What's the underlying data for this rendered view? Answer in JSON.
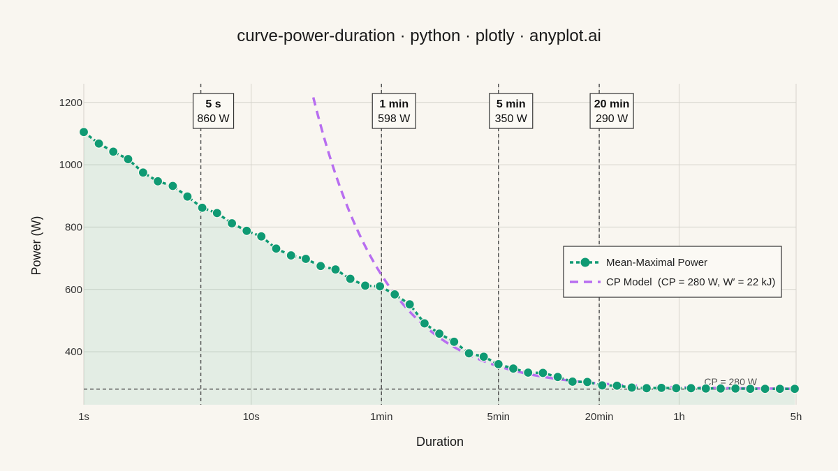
{
  "chart_data": {
    "type": "line",
    "title": "curve-power-duration · python · plotly · anyplot.ai",
    "xlabel": "Duration",
    "ylabel": "Power (W)",
    "x_scale": "log",
    "x_unit": "seconds",
    "xlim": [
      1,
      18000
    ],
    "ylim": [
      230,
      1260
    ],
    "x_ticks": [
      {
        "value": 1,
        "label": "1s"
      },
      {
        "value": 10,
        "label": "10s"
      },
      {
        "value": 60,
        "label": "1min"
      },
      {
        "value": 300,
        "label": "5min"
      },
      {
        "value": 1200,
        "label": "20min"
      },
      {
        "value": 3600,
        "label": "1h"
      },
      {
        "value": 18000,
        "label": "5h"
      }
    ],
    "y_ticks": [
      {
        "value": 400,
        "label": "400"
      },
      {
        "value": 600,
        "label": "600"
      },
      {
        "value": 800,
        "label": "800"
      },
      {
        "value": 1000,
        "label": "1000"
      },
      {
        "value": 1200,
        "label": "1200"
      }
    ],
    "grid": true,
    "legend_position": "right",
    "series": [
      {
        "name": "Mean-Maximal Power",
        "style": "line+markers",
        "fill": "tozero",
        "color": "#0F9A73",
        "x": [
          1,
          1.23,
          1.5,
          1.84,
          2.26,
          2.77,
          3.4,
          4.16,
          5.1,
          6.25,
          7.67,
          9.4,
          11.5,
          14.1,
          17.3,
          21.2,
          26,
          31.9,
          39.1,
          48,
          58.8,
          72,
          88.5,
          108.5,
          133,
          163,
          200,
          245,
          300,
          368,
          451,
          553,
          678,
          831,
          1019,
          1250,
          1532,
          1878,
          2303,
          2823,
          3461,
          4243,
          5202,
          6377,
          7818,
          9585,
          11751,
          14406,
          17661
        ],
        "y": [
          1105,
          1068,
          1042,
          1018,
          975,
          947,
          932,
          898,
          862,
          845,
          812,
          788,
          770,
          731,
          709,
          698,
          675,
          664,
          634,
          612,
          610,
          584,
          552,
          491,
          458,
          432,
          395,
          384,
          360,
          346,
          333,
          332,
          319,
          304,
          303,
          292,
          291,
          285,
          283,
          284,
          283,
          283,
          282,
          282,
          282,
          281,
          281,
          281,
          281
        ]
      },
      {
        "name": "CP Model  (CP = 280 W, W′ = 22 kJ)",
        "style": "dashed",
        "color": "#B86EF0",
        "cp": 280,
        "w_prime_j": 22000,
        "x_start": 23.5,
        "x_end": 18000
      }
    ],
    "reference_lines": [
      {
        "type": "hline",
        "y": 280,
        "label": "CP = 280 W"
      },
      {
        "type": "vline",
        "x": 5
      },
      {
        "type": "vline",
        "x": 60
      },
      {
        "type": "vline",
        "x": 300
      },
      {
        "type": "vline",
        "x": 1200
      }
    ],
    "annotations": [
      {
        "x": 5,
        "label": "5 s",
        "value": "860 W"
      },
      {
        "x": 60,
        "label": "1 min",
        "value": "598 W"
      },
      {
        "x": 300,
        "label": "5 min",
        "value": "350 W"
      },
      {
        "x": 1200,
        "label": "20 min",
        "value": "290 W"
      }
    ]
  }
}
